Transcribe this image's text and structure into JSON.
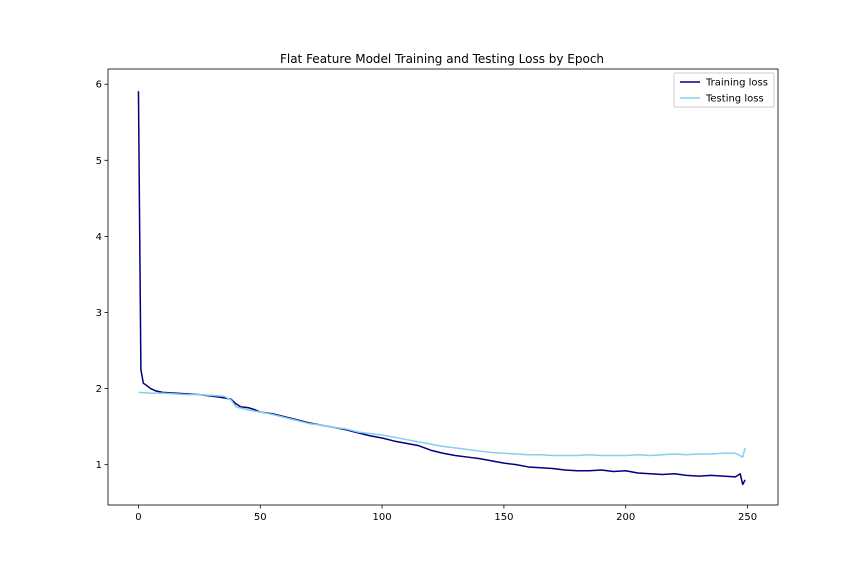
{
  "chart_data": {
    "type": "line",
    "title": "Flat Feature Model Training and Testing Loss by Epoch",
    "xlabel": "",
    "ylabel": "",
    "xlim": [
      -12.5,
      262.5
    ],
    "ylim": [
      0.47,
      6.2
    ],
    "x_ticks": [
      "0",
      "50",
      "100",
      "150",
      "200",
      "250"
    ],
    "y_ticks": [
      "1",
      "2",
      "3",
      "4",
      "5",
      "6"
    ],
    "grid": false,
    "legend_position": "top-right",
    "series": [
      {
        "name": "Training loss",
        "color": "#000080",
        "points": [
          [
            0,
            5.91
          ],
          [
            1,
            2.25
          ],
          [
            2,
            2.07
          ],
          [
            3,
            2.05
          ],
          [
            5,
            2.0
          ],
          [
            7,
            1.97
          ],
          [
            10,
            1.95
          ],
          [
            15,
            1.94
          ],
          [
            20,
            1.93
          ],
          [
            25,
            1.92
          ],
          [
            30,
            1.9
          ],
          [
            35,
            1.88
          ],
          [
            38,
            1.86
          ],
          [
            40,
            1.8
          ],
          [
            42,
            1.76
          ],
          [
            45,
            1.75
          ],
          [
            48,
            1.72
          ],
          [
            50,
            1.69
          ],
          [
            55,
            1.67
          ],
          [
            60,
            1.63
          ],
          [
            65,
            1.59
          ],
          [
            70,
            1.55
          ],
          [
            75,
            1.52
          ],
          [
            80,
            1.49
          ],
          [
            85,
            1.46
          ],
          [
            90,
            1.42
          ],
          [
            95,
            1.38
          ],
          [
            100,
            1.35
          ],
          [
            105,
            1.31
          ],
          [
            110,
            1.28
          ],
          [
            115,
            1.25
          ],
          [
            120,
            1.19
          ],
          [
            125,
            1.15
          ],
          [
            130,
            1.12
          ],
          [
            135,
            1.1
          ],
          [
            140,
            1.08
          ],
          [
            145,
            1.05
          ],
          [
            150,
            1.02
          ],
          [
            155,
            1.0
          ],
          [
            160,
            0.97
          ],
          [
            165,
            0.96
          ],
          [
            170,
            0.95
          ],
          [
            175,
            0.93
          ],
          [
            180,
            0.92
          ],
          [
            185,
            0.92
          ],
          [
            190,
            0.93
          ],
          [
            195,
            0.91
          ],
          [
            200,
            0.92
          ],
          [
            205,
            0.89
          ],
          [
            210,
            0.88
          ],
          [
            215,
            0.87
          ],
          [
            220,
            0.88
          ],
          [
            225,
            0.86
          ],
          [
            230,
            0.85
          ],
          [
            235,
            0.86
          ],
          [
            240,
            0.85
          ],
          [
            245,
            0.84
          ],
          [
            247,
            0.88
          ],
          [
            248,
            0.74
          ],
          [
            249,
            0.8
          ]
        ]
      },
      {
        "name": "Testing loss",
        "color": "#87CEEB",
        "points": [
          [
            0,
            1.95
          ],
          [
            5,
            1.94
          ],
          [
            10,
            1.94
          ],
          [
            15,
            1.93
          ],
          [
            20,
            1.92
          ],
          [
            25,
            1.92
          ],
          [
            30,
            1.91
          ],
          [
            35,
            1.9
          ],
          [
            38,
            1.85
          ],
          [
            40,
            1.76
          ],
          [
            45,
            1.72
          ],
          [
            50,
            1.69
          ],
          [
            55,
            1.66
          ],
          [
            60,
            1.62
          ],
          [
            65,
            1.58
          ],
          [
            70,
            1.54
          ],
          [
            75,
            1.52
          ],
          [
            80,
            1.49
          ],
          [
            85,
            1.47
          ],
          [
            90,
            1.43
          ],
          [
            95,
            1.41
          ],
          [
            100,
            1.39
          ],
          [
            105,
            1.36
          ],
          [
            110,
            1.33
          ],
          [
            115,
            1.3
          ],
          [
            120,
            1.27
          ],
          [
            125,
            1.24
          ],
          [
            130,
            1.22
          ],
          [
            135,
            1.2
          ],
          [
            140,
            1.18
          ],
          [
            145,
            1.16
          ],
          [
            150,
            1.15
          ],
          [
            155,
            1.14
          ],
          [
            160,
            1.13
          ],
          [
            165,
            1.13
          ],
          [
            170,
            1.12
          ],
          [
            175,
            1.12
          ],
          [
            180,
            1.12
          ],
          [
            185,
            1.13
          ],
          [
            190,
            1.12
          ],
          [
            195,
            1.12
          ],
          [
            200,
            1.12
          ],
          [
            205,
            1.13
          ],
          [
            210,
            1.12
          ],
          [
            215,
            1.13
          ],
          [
            220,
            1.14
          ],
          [
            225,
            1.13
          ],
          [
            230,
            1.14
          ],
          [
            235,
            1.14
          ],
          [
            240,
            1.15
          ],
          [
            245,
            1.15
          ],
          [
            248,
            1.1
          ],
          [
            249,
            1.22
          ]
        ]
      }
    ]
  }
}
